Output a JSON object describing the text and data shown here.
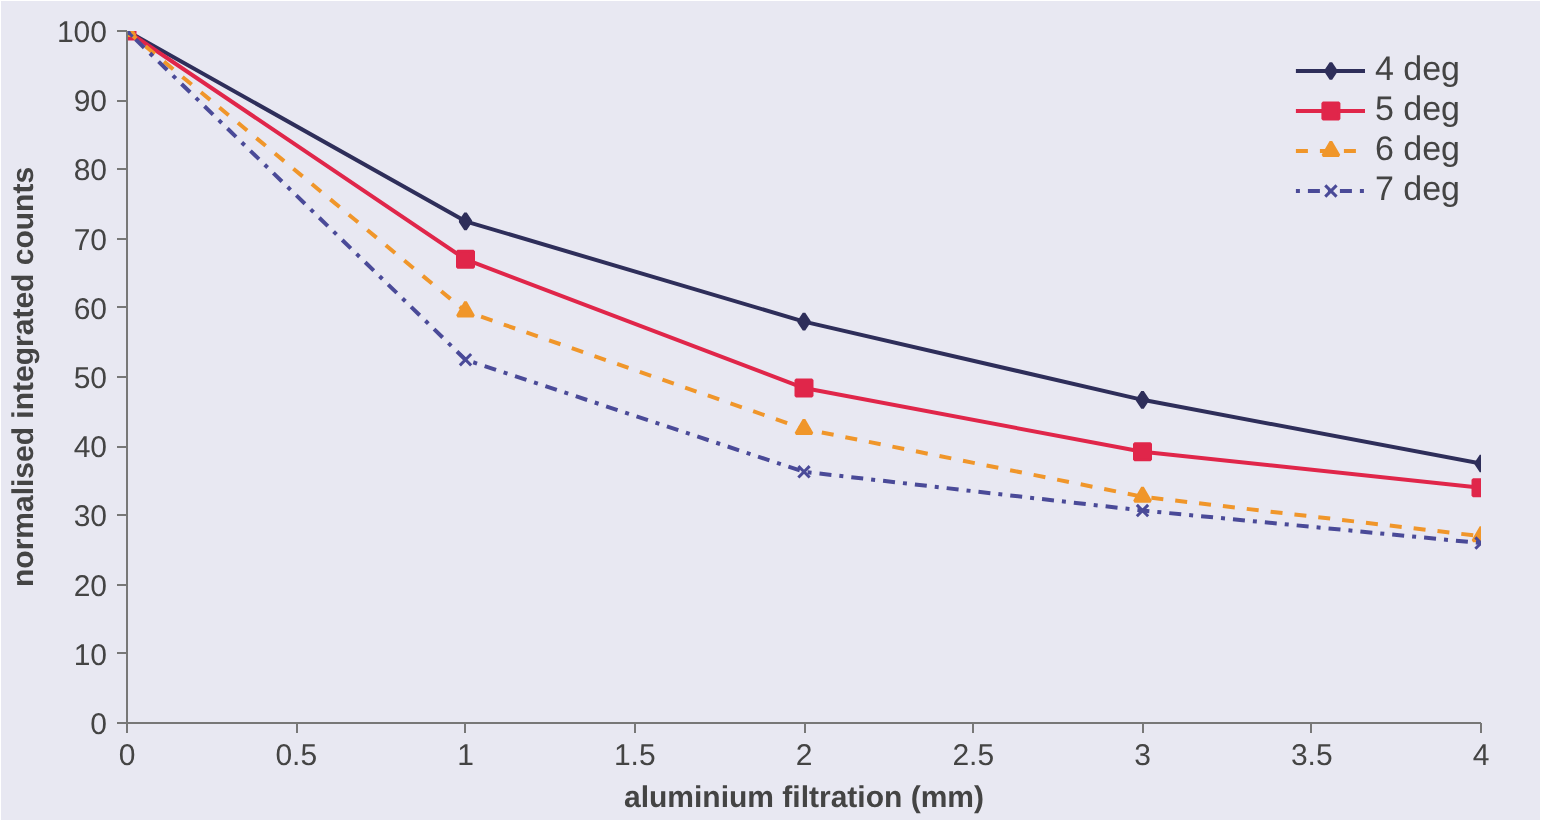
{
  "chart_data": {
    "type": "line",
    "xlabel": "aluminium filtration (mm)",
    "ylabel": "normalised integrated counts",
    "x": [
      0,
      1,
      2,
      3,
      4
    ],
    "series": [
      {
        "name": "4 deg",
        "color": "#2e2e5a",
        "marker": "diamond",
        "line_style": "solid",
        "values": [
          100,
          72.5,
          58,
          46.7,
          37.5
        ]
      },
      {
        "name": "5 deg",
        "color": "#e0264a",
        "marker": "square",
        "line_style": "solid",
        "values": [
          100,
          67,
          48.4,
          39.2,
          34
        ]
      },
      {
        "name": "6 deg",
        "color": "#f0962a",
        "marker": "triangle",
        "line_style": "dashed",
        "values": [
          100,
          59.5,
          42.5,
          32.7,
          27
        ]
      },
      {
        "name": "7 deg",
        "color": "#4a4a98",
        "marker": "cross",
        "line_style": "dotted",
        "values": [
          100,
          52.5,
          36.3,
          30.7,
          26
        ]
      }
    ],
    "xlim": [
      0,
      4
    ],
    "xticks": [
      0,
      0.5,
      1,
      1.5,
      2,
      2.5,
      3,
      3.5,
      4
    ],
    "ylim": [
      0,
      100
    ],
    "yticks": [
      0,
      10,
      20,
      30,
      40,
      50,
      60,
      70,
      80,
      90,
      100
    ],
    "grid": false,
    "legend": "top right"
  }
}
